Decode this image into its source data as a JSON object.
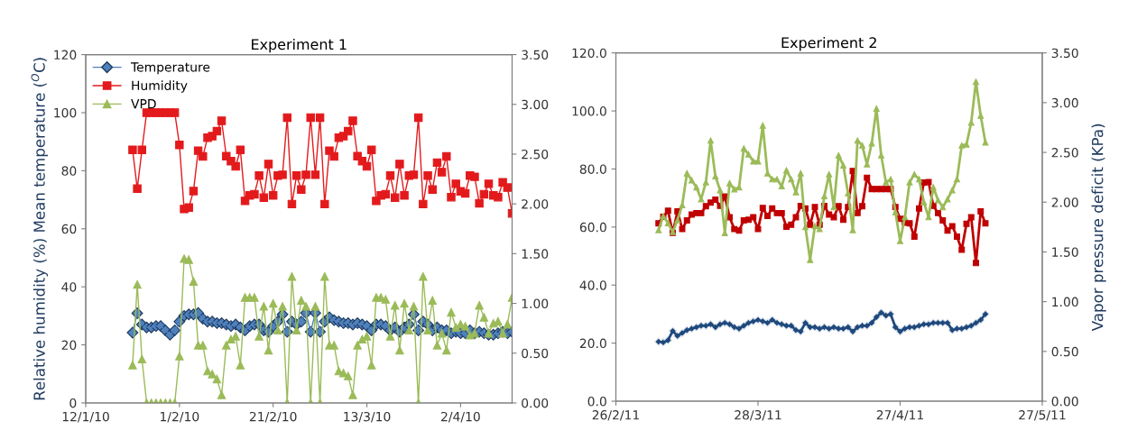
{
  "chart_data": [
    {
      "type": "line",
      "title": "Experiment 1",
      "ylabel": "Relative humidity (%) Mean temperature ($^{O}$C)",
      "legend": "top left",
      "x": [
        "2010-01-22",
        "2010-01-23",
        "2010-01-24",
        "2010-01-25",
        "2010-01-26",
        "2010-01-27",
        "2010-01-28",
        "2010-01-29",
        "2010-01-30",
        "2010-01-31",
        "2010-02-01",
        "2010-02-02",
        "2010-02-03",
        "2010-02-04",
        "2010-02-05",
        "2010-02-06",
        "2010-02-07",
        "2010-02-08",
        "2010-02-09",
        "2010-02-10",
        "2010-02-11",
        "2010-02-12",
        "2010-02-13",
        "2010-02-14",
        "2010-02-15",
        "2010-02-16",
        "2010-02-17",
        "2010-02-18",
        "2010-02-19",
        "2010-02-20",
        "2010-02-21",
        "2010-02-22",
        "2010-02-23",
        "2010-02-24",
        "2010-02-25",
        "2010-02-26",
        "2010-02-27",
        "2010-02-28",
        "2010-03-01",
        "2010-03-02",
        "2010-03-03",
        "2010-03-04",
        "2010-03-05",
        "2010-03-06",
        "2010-03-07",
        "2010-03-08",
        "2010-03-09",
        "2010-03-10",
        "2010-03-11",
        "2010-03-12",
        "2010-03-13",
        "2010-03-14",
        "2010-03-15",
        "2010-03-16",
        "2010-03-17",
        "2010-03-18",
        "2010-03-19",
        "2010-03-20",
        "2010-03-21",
        "2010-03-22",
        "2010-03-23",
        "2010-03-24",
        "2010-03-25",
        "2010-03-26",
        "2010-03-27",
        "2010-03-28",
        "2010-03-29",
        "2010-03-30",
        "2010-03-31",
        "2010-04-01",
        "2010-04-02",
        "2010-04-03",
        "2010-04-04",
        "2010-04-05",
        "2010-04-06",
        "2010-04-07",
        "2010-04-08",
        "2010-04-09",
        "2010-04-10",
        "2010-04-11",
        "2010-04-12",
        "2010-04-13"
      ],
      "xlim": [
        "2010-01-12",
        "2010-04-13"
      ],
      "xticks": [
        {
          "value": "2010-01-12",
          "label": "12/1/10"
        },
        {
          "value": "2010-02-01",
          "label": "1/2/10"
        },
        {
          "value": "2010-02-21",
          "label": "21/2/10"
        },
        {
          "value": "2010-03-13",
          "label": "13/3/10"
        },
        {
          "value": "2010-04-02",
          "label": "2/4/10"
        }
      ],
      "ylim": [
        0,
        120
      ],
      "yticks": [
        0,
        20,
        40,
        60,
        80,
        100,
        120
      ],
      "y2lim": [
        0,
        3.5
      ],
      "y2ticks": [
        {
          "value": 0,
          "label": "0.00"
        },
        {
          "value": 0.5,
          "label": "0.50"
        },
        {
          "value": 1,
          "label": "1.00"
        },
        {
          "value": 1.5,
          "label": "1.50"
        },
        {
          "value": 2,
          "label": "2.00"
        },
        {
          "value": 2.5,
          "label": "2.50"
        },
        {
          "value": 3,
          "label": "3.00"
        },
        {
          "value": 3.5,
          "label": "3.50"
        }
      ],
      "series": [
        {
          "name": "Temperature",
          "color": "#4f81bd",
          "marker": "diamond",
          "values": [
            24.2,
            30.9,
            27,
            26,
            26,
            26.5,
            26.5,
            25,
            23.5,
            25,
            28,
            30,
            30.5,
            30.5,
            31,
            29,
            28,
            28,
            27.5,
            27.5,
            27,
            26.5,
            27,
            26,
            25,
            26.5,
            27,
            27,
            25,
            24.5,
            26.5,
            28,
            30.5,
            24.5,
            28,
            27,
            28,
            31,
            24.5,
            31,
            24.5,
            28,
            29.5,
            28.5,
            28,
            27.5,
            27.5,
            27,
            27.5,
            27,
            26.5,
            25,
            27,
            27,
            26.5,
            25,
            26,
            24.5,
            26,
            27,
            30.5,
            25,
            28,
            27,
            25,
            26,
            25,
            25,
            24,
            24.5,
            24,
            24,
            25,
            24,
            24.5,
            24,
            23.5,
            23.5,
            24,
            24.5,
            24,
            24.5
          ]
        },
        {
          "name": "Humidity",
          "color": "#e31a1c",
          "marker": "square",
          "values": [
            87.2,
            73.8,
            87.2,
            100,
            100,
            100,
            100,
            100,
            100,
            100,
            88.9,
            66.8,
            67.3,
            73,
            86.9,
            84.9,
            91.4,
            91.9,
            93.6,
            97.2,
            85,
            83.3,
            81.5,
            87.2,
            69.6,
            71.5,
            71.9,
            78.3,
            70.7,
            82.3,
            71.5,
            78.3,
            78.6,
            98.3,
            68.5,
            78.3,
            73.5,
            78.6,
            98.3,
            78.6,
            98.3,
            68.5,
            86.9,
            84.9,
            91.4,
            91.9,
            93.6,
            97.2,
            85,
            83.3,
            81.5,
            87.2,
            69.6,
            71.5,
            71.9,
            78.3,
            70.7,
            82.3,
            71.5,
            78.3,
            78.6,
            98.3,
            68.5,
            78.3,
            73.5,
            82.8,
            79.5,
            84.9,
            70.9,
            75.5,
            72.9,
            72.2,
            78.3,
            77.9,
            68.8,
            71.9,
            75.5,
            71.5,
            70.9,
            76,
            74.2,
            65.3
          ]
        },
        {
          "name": "VPD",
          "color": "#9bbb59",
          "marker": "triangle",
          "axis": "y2",
          "values": [
            0.38,
            1.19,
            0.44,
            0,
            0,
            0,
            0,
            0,
            0,
            0,
            0.47,
            1.45,
            1.44,
            1.22,
            0.58,
            0.58,
            0.32,
            0.29,
            0.24,
            0.08,
            0.58,
            0.64,
            0.67,
            0.38,
            1.06,
            1.06,
            1.06,
            0.67,
            0.97,
            0.53,
            1.0,
            0.73,
            0.97,
            0,
            1.27,
            0.73,
            1.03,
            0.97,
            0,
            0.97,
            0,
            1.27,
            0.58,
            0.58,
            0.32,
            0.3,
            0.27,
            0.08,
            0.58,
            0.64,
            0.67,
            0.38,
            1.06,
            1.06,
            1.04,
            0.67,
            0.98,
            0.53,
            1.0,
            0.73,
            0.97,
            0,
            1.27,
            0.73,
            1.03,
            0.58,
            0.7,
            0.53,
            0.91,
            0.76,
            0.79,
            0.77,
            0.68,
            0.7,
            0.98,
            0.86,
            0.7,
            0.8,
            0.82,
            0.7,
            0.79,
            1.06
          ]
        }
      ]
    },
    {
      "type": "line",
      "title": "Experiment 2",
      "y2label": "Vapor pressure deficit (KPa)",
      "x": [
        "2011-03-07",
        "2011-03-08",
        "2011-03-09",
        "2011-03-10",
        "2011-03-11",
        "2011-03-12",
        "2011-03-13",
        "2011-03-14",
        "2011-03-15",
        "2011-03-16",
        "2011-03-17",
        "2011-03-18",
        "2011-03-19",
        "2011-03-20",
        "2011-03-21",
        "2011-03-22",
        "2011-03-23",
        "2011-03-24",
        "2011-03-25",
        "2011-03-26",
        "2011-03-27",
        "2011-03-28",
        "2011-03-29",
        "2011-03-30",
        "2011-03-31",
        "2011-04-01",
        "2011-04-02",
        "2011-04-03",
        "2011-04-04",
        "2011-04-05",
        "2011-04-06",
        "2011-04-07",
        "2011-04-08",
        "2011-04-09",
        "2011-04-10",
        "2011-04-11",
        "2011-04-12",
        "2011-04-13",
        "2011-04-14",
        "2011-04-15",
        "2011-04-16",
        "2011-04-17",
        "2011-04-18",
        "2011-04-19",
        "2011-04-20",
        "2011-04-21",
        "2011-04-22",
        "2011-04-23",
        "2011-04-24",
        "2011-04-25",
        "2011-04-26",
        "2011-04-27",
        "2011-04-28",
        "2011-04-29",
        "2011-04-30",
        "2011-05-01",
        "2011-05-02",
        "2011-05-03",
        "2011-05-04",
        "2011-05-05",
        "2011-05-06",
        "2011-05-07",
        "2011-05-08",
        "2011-05-09",
        "2011-05-10",
        "2011-05-11",
        "2011-05-12",
        "2011-05-13",
        "2011-05-14",
        "2011-05-15"
      ],
      "xlim": [
        "2011-02-26",
        "2011-05-27"
      ],
      "xticks": [
        {
          "value": "2011-02-26",
          "label": "26/2/11"
        },
        {
          "value": "2011-03-28",
          "label": "28/3/11"
        },
        {
          "value": "2011-04-27",
          "label": "27/4/11"
        },
        {
          "value": "2011-05-27",
          "label": "27/5/11"
        }
      ],
      "ylim": [
        0,
        120
      ],
      "yticks": [
        {
          "value": 0,
          "label": "0.0"
        },
        {
          "value": 20,
          "label": "20.0"
        },
        {
          "value": 40,
          "label": "40.0"
        },
        {
          "value": 60,
          "label": "60.0"
        },
        {
          "value": 80,
          "label": "80.0"
        },
        {
          "value": 100,
          "label": "100.0"
        },
        {
          "value": 120,
          "label": "120.0"
        }
      ],
      "y2lim": [
        0,
        3.5
      ],
      "y2ticks": [
        {
          "value": 0,
          "label": "0.00"
        },
        {
          "value": 0.5,
          "label": "0.50"
        },
        {
          "value": 1,
          "label": "1.00"
        },
        {
          "value": 1.5,
          "label": "1.50"
        },
        {
          "value": 2,
          "label": "2.00"
        },
        {
          "value": 2.5,
          "label": "2.50"
        },
        {
          "value": 3,
          "label": "3.00"
        },
        {
          "value": 3.5,
          "label": "3.50"
        }
      ],
      "series": [
        {
          "color": "#1f497d",
          "marker": "diamond",
          "values": [
            20.5,
            20.3,
            21,
            24.2,
            22.5,
            23.5,
            24.5,
            25,
            25.5,
            26,
            26,
            26.5,
            25.5,
            26.5,
            27,
            26.5,
            25.5,
            25,
            26,
            27,
            27.5,
            28,
            27.5,
            27,
            28,
            27,
            26.5,
            26,
            26,
            24.5,
            24,
            27,
            25.5,
            25.5,
            25,
            25.5,
            25,
            25.5,
            25,
            25,
            25.5,
            24,
            25.5,
            26,
            26,
            27,
            29,
            30.5,
            29.5,
            30,
            25.5,
            24,
            25,
            25.5,
            25.5,
            26,
            26.5,
            26.5,
            27,
            27,
            27,
            27,
            24.5,
            25,
            25,
            25.5,
            26,
            27,
            28,
            30
          ]
        },
        {
          "color": "#c00000",
          "marker": "square",
          "values": [
            61.3,
            63.5,
            65.6,
            58,
            65.4,
            59.3,
            62.3,
            64.3,
            64.8,
            64.8,
            67.2,
            68.4,
            69.4,
            67.3,
            70.5,
            63.4,
            59.3,
            58.8,
            62.3,
            62.5,
            63.4,
            59.3,
            66.6,
            63.8,
            66.4,
            64.8,
            64.8,
            60.1,
            60.8,
            63.4,
            67.3,
            66.4,
            60.8,
            66.9,
            60.8,
            67.3,
            64.3,
            63.4,
            67.2,
            62.5,
            66.9,
            79.3,
            64.8,
            67.2,
            77,
            73.1,
            73.1,
            73.1,
            73.1,
            73.1,
            66.9,
            62.8,
            61.5,
            61.3,
            56.7,
            66.4,
            75.3,
            75.5,
            67.3,
            64.8,
            62.3,
            58.8,
            60.3,
            56.7,
            52.2,
            61.1,
            63.4,
            47.6,
            65.4,
            61.3
          ]
        },
        {
          "color": "#9bbb59",
          "marker": "triangle",
          "axis": "y2",
          "values": [
            1.72,
            1.86,
            1.79,
            1.7,
            1.82,
            1.97,
            2.29,
            2.22,
            2.15,
            2.03,
            2.2,
            2.62,
            2.26,
            2.12,
            1.69,
            2.19,
            2.13,
            2.15,
            2.54,
            2.48,
            2.41,
            2.41,
            2.77,
            2.29,
            2.23,
            2.23,
            2.16,
            2.32,
            2.23,
            2.1,
            2.29,
            1.75,
            1.42,
            1.76,
            1.73,
            2.06,
            2.28,
            1.95,
            2.47,
            2.37,
            2.09,
            1.72,
            2.62,
            2.57,
            2.38,
            2.59,
            2.94,
            2.47,
            2.2,
            2.23,
            1.9,
            1.61,
            1.85,
            2.2,
            2.28,
            2.23,
            2.0,
            1.85,
            2.15,
            2.02,
            1.95,
            2.03,
            2.12,
            2.23,
            2.57,
            2.58,
            2.8,
            3.21,
            2.87,
            2.6
          ]
        }
      ]
    }
  ]
}
